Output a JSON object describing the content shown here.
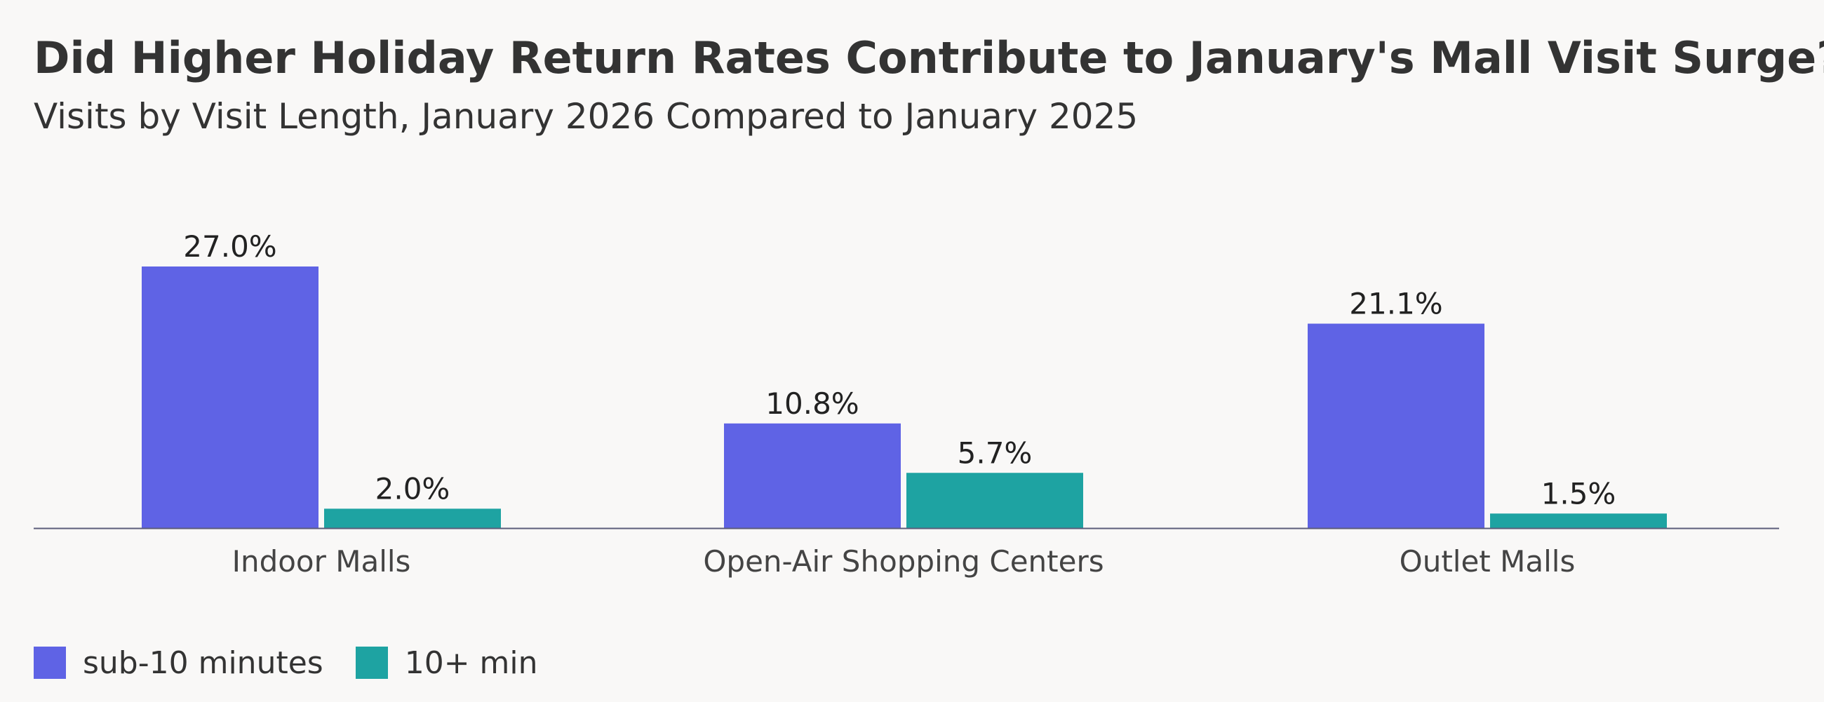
{
  "header": {
    "title": "Did Higher Holiday Return Rates Contribute to January's Mall Visit Surge?",
    "subtitle": "Visits by Visit Length, January 2026 Compared to January 2025"
  },
  "colors": {
    "sub10": "#5f63e5",
    "ten_plus": "#1ea3a2",
    "axis": "#5c5c7a",
    "text": "#333333",
    "background": "#f9f8f7"
  },
  "chart_data": {
    "type": "bar",
    "title": "Did Higher Holiday Return Rates Contribute to January's Mall Visit Surge?",
    "subtitle": "Visits by Visit Length, January 2026 Compared to January 2025",
    "xlabel": "",
    "ylabel": "",
    "categories": [
      "Indoor Malls",
      "Open-Air Shopping Centers",
      "Outlet Malls"
    ],
    "series": [
      {
        "name": "sub-10 minutes",
        "color": "#5f63e5",
        "values": [
          27.0,
          10.8,
          21.1
        ],
        "labels": [
          "27.0%",
          "10.8%",
          "21.1%"
        ]
      },
      {
        "name": "10+ min",
        "color": "#1ea3a2",
        "values": [
          2.0,
          5.7,
          1.5
        ],
        "labels": [
          "2.0%",
          "5.7%",
          "1.5%"
        ]
      }
    ],
    "ylim": [
      0,
      27.0
    ],
    "grid": false,
    "legend_position": "bottom-left"
  },
  "legend": {
    "items": [
      {
        "label": "sub-10 minutes",
        "color": "#5f63e5"
      },
      {
        "label": "10+ min",
        "color": "#1ea3a2"
      }
    ]
  }
}
